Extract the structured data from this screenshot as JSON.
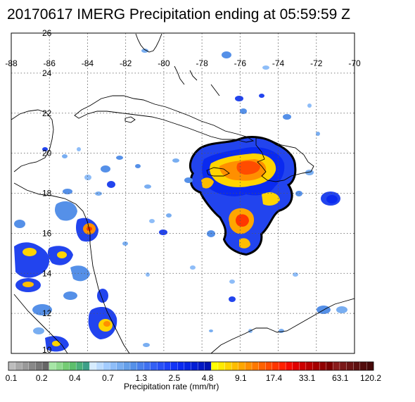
{
  "title": "20170617 IMERG Precipitation ending at 05:59:59 Z",
  "map": {
    "lon_range": [
      -88,
      -70
    ],
    "lat_range": [
      10,
      26
    ],
    "lon_tick_labels": [
      "-88",
      "-86",
      "-84",
      "-82",
      "-80",
      "-78",
      "-76",
      "-74",
      "-72",
      "-70"
    ],
    "lat_tick_labels": [
      "10",
      "12",
      "14",
      "16",
      "18",
      "20",
      "22",
      "24",
      "26"
    ],
    "grid": "dotted",
    "colors": {
      "coast": "#000000",
      "grid": "#555555",
      "heavy_contour": "#000000"
    }
  },
  "colorbar": {
    "label": "Precipitation rate (mm/hr)",
    "tick_labels": [
      "0.1",
      "0.2",
      "0.4",
      "0.7",
      "1.3",
      "2.5",
      "4.8",
      "9.1",
      "17.4",
      "33.1",
      "63.1",
      "120.2"
    ],
    "colors": [
      "#bdbdbd",
      "#aaaaaa",
      "#999999",
      "#888888",
      "#777777",
      "#666666",
      "#a6e6a6",
      "#8ed98e",
      "#74cc74",
      "#5cbf6c",
      "#4ab07a",
      "#3d9f88",
      "#d6ecff",
      "#bcdcff",
      "#a3ccff",
      "#8ebdf8",
      "#79aef1",
      "#659fe9",
      "#5590e8",
      "#4a80ec",
      "#3f70f0",
      "#3460f4",
      "#2850f6",
      "#1c40f8",
      "#1234f6",
      "#0a2af0",
      "#0624e2",
      "#041ed4",
      "#0318c4",
      "#0212b0",
      "#ffff00",
      "#ffea00",
      "#ffd400",
      "#ffbd00",
      "#ffa600",
      "#ff8f00",
      "#ff7800",
      "#ff6100",
      "#ff4c00",
      "#ff3600",
      "#ff2000",
      "#f40a00",
      "#e00000",
      "#cc0000",
      "#b80000",
      "#a40000",
      "#900000",
      "#7c0000",
      "#8a1c1c",
      "#7a1818",
      "#6c1414",
      "#5e1010",
      "#520c0c",
      "#460808"
    ]
  }
}
